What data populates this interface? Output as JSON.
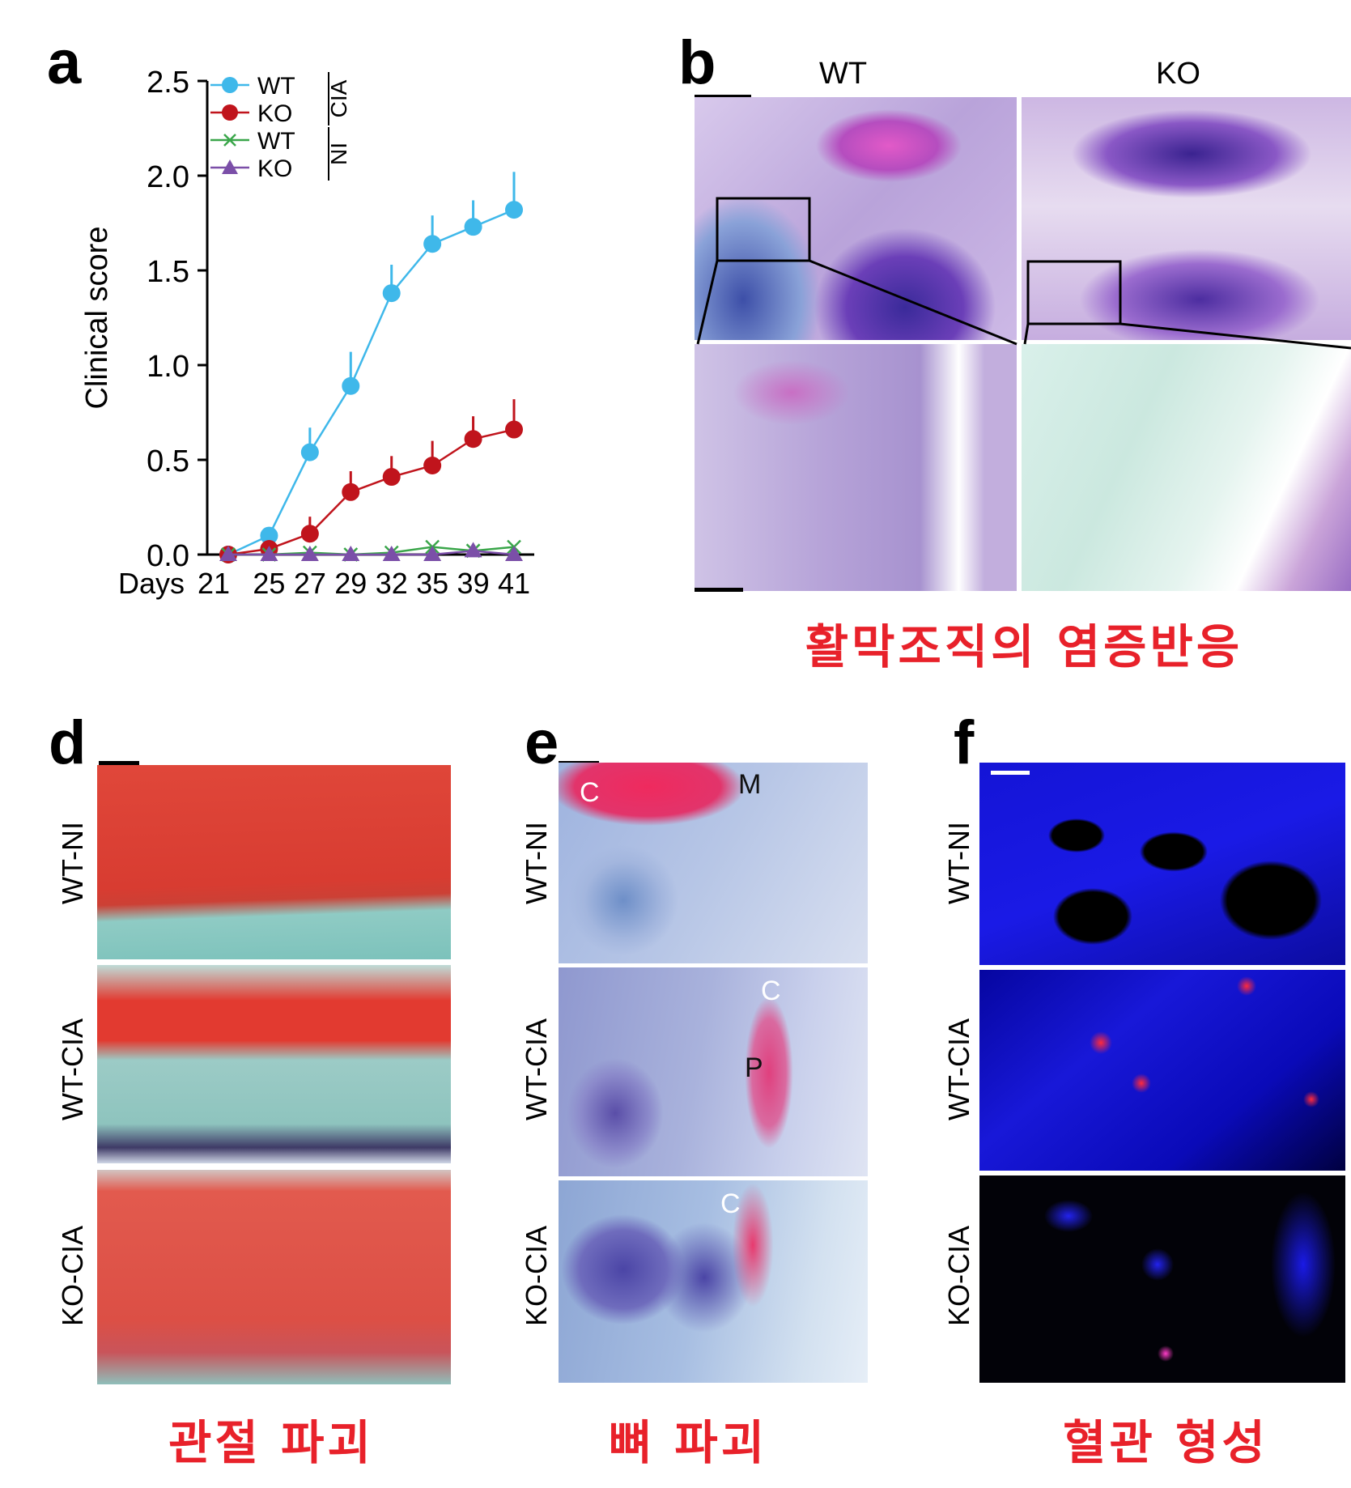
{
  "panels": {
    "a": "a",
    "b": "b",
    "d": "d",
    "e": "e",
    "f": "f"
  },
  "chart_data": {
    "type": "line",
    "ylabel": "Clinical score",
    "xlabel": "Days",
    "ylim": [
      0,
      2.5
    ],
    "yticks": [
      "0.0",
      "0.5",
      "1.0",
      "1.5",
      "2.0",
      "2.5"
    ],
    "categories": [
      "21",
      "25",
      "27",
      "29",
      "32",
      "35",
      "39",
      "41"
    ],
    "legend_groups": [
      "CIA",
      "NI"
    ],
    "series": [
      {
        "name": "WT",
        "group": "CIA",
        "color": "#3fb8ea",
        "marker": "circle",
        "values": [
          0.0,
          0.1,
          0.54,
          0.89,
          1.38,
          1.64,
          1.73,
          1.82
        ],
        "errors": [
          0.0,
          0.0,
          0.13,
          0.18,
          0.15,
          0.15,
          0.14,
          0.2
        ]
      },
      {
        "name": "KO",
        "group": "CIA",
        "color": "#c0141c",
        "marker": "circle",
        "values": [
          0.0,
          0.03,
          0.11,
          0.33,
          0.41,
          0.47,
          0.61,
          0.66
        ],
        "errors": [
          0.0,
          0.0,
          0.09,
          0.11,
          0.11,
          0.13,
          0.12,
          0.16
        ]
      },
      {
        "name": "WT",
        "group": "NI",
        "color": "#3aa64a",
        "marker": "x",
        "values": [
          0.0,
          0.0,
          0.01,
          0.0,
          0.01,
          0.04,
          0.02,
          0.04
        ]
      },
      {
        "name": "KO",
        "group": "NI",
        "color": "#7b4fa8",
        "marker": "triangle",
        "values": [
          0.0,
          0.0,
          0.0,
          0.0,
          0.0,
          0.0,
          0.02,
          0.0
        ]
      }
    ]
  },
  "panel_b": {
    "columns": [
      "WT",
      "KO"
    ],
    "caption": "활막조직의 염증반응"
  },
  "panel_d": {
    "rows": [
      "WT-NI",
      "WT-CIA",
      "KO-CIA"
    ],
    "caption": "관절 파괴"
  },
  "panel_e": {
    "rows": [
      "WT-NI",
      "WT-CIA",
      "KO-CIA"
    ],
    "annotations": [
      "C",
      "M",
      "C",
      "P",
      "C"
    ],
    "caption": "뼈 파괴"
  },
  "panel_f": {
    "rows": [
      "WT-NI",
      "WT-CIA",
      "KO-CIA"
    ],
    "caption": "혈관 형성"
  },
  "colors": {
    "caption": "#e8212a",
    "he_stain": "#8a5cc0",
    "safranin": "#e0382e",
    "fast_green": "#7cc6c0",
    "if_blue": "#1a1ae0",
    "if_red": "#ff2a3c"
  }
}
